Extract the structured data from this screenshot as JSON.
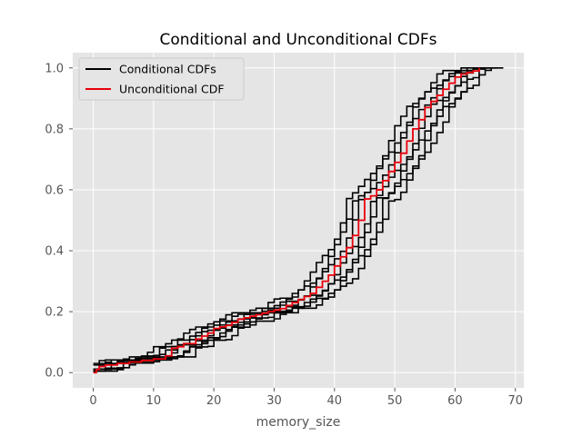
{
  "chart_data": {
    "type": "line",
    "title": "Conditional and Unconditional CDFs",
    "xlabel": "memory_size",
    "ylabel": "",
    "xlim": [
      -3.4,
      71.4
    ],
    "ylim": [
      -0.05,
      1.05
    ],
    "xticks": [
      0,
      10,
      20,
      30,
      40,
      50,
      60,
      70
    ],
    "xtick_labels": [
      "0",
      "10",
      "20",
      "30",
      "40",
      "50",
      "60",
      "70"
    ],
    "yticks": [
      0.0,
      0.2,
      0.4,
      0.6,
      0.8,
      1.0
    ],
    "ytick_labels": [
      "0.0",
      "0.2",
      "0.4",
      "0.6",
      "0.8",
      "1.0"
    ],
    "grid": true,
    "step": true,
    "background": "#e5e5e5",
    "legend": {
      "position": "top-left",
      "entries": [
        {
          "label": "Conditional CDFs",
          "color": "#000000"
        },
        {
          "label": "Unconditional CDF",
          "color": "#e8000b"
        }
      ]
    },
    "series": [
      {
        "name": "Unconditional CDF",
        "color": "#e8000b",
        "x": [
          0,
          0.5,
          1,
          2,
          4,
          6,
          8,
          10,
          12,
          13,
          14,
          15,
          17,
          18,
          19,
          20,
          21,
          22,
          23,
          24,
          25,
          26,
          27,
          28,
          29,
          30,
          31,
          32,
          33,
          34,
          35,
          36,
          37,
          38,
          39,
          40,
          41,
          42,
          43,
          44,
          45,
          46,
          47,
          48,
          49,
          50,
          51,
          52,
          53,
          54,
          55,
          56,
          57,
          58,
          59,
          60,
          61,
          62,
          63,
          64
        ],
        "y": [
          0.0,
          0.01,
          0.02,
          0.025,
          0.03,
          0.035,
          0.04,
          0.045,
          0.055,
          0.08,
          0.085,
          0.095,
          0.11,
          0.12,
          0.13,
          0.145,
          0.15,
          0.155,
          0.165,
          0.175,
          0.18,
          0.185,
          0.19,
          0.195,
          0.2,
          0.205,
          0.21,
          0.22,
          0.23,
          0.24,
          0.25,
          0.26,
          0.28,
          0.3,
          0.32,
          0.35,
          0.38,
          0.41,
          0.45,
          0.5,
          0.57,
          0.58,
          0.6,
          0.63,
          0.66,
          0.69,
          0.72,
          0.76,
          0.8,
          0.83,
          0.87,
          0.89,
          0.91,
          0.93,
          0.95,
          0.97,
          0.98,
          0.985,
          0.99,
          1.0
        ]
      }
    ]
  }
}
